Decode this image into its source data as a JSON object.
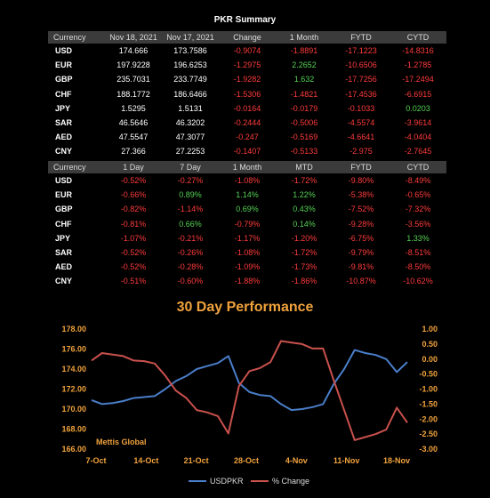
{
  "summary_title": "PKR Summary",
  "table1": {
    "headers": [
      "Currency",
      "Nov 18, 2021",
      "Nov 17, 2021",
      "Change",
      "1 Month",
      "FYTD",
      "CYTD"
    ],
    "rows": [
      [
        "USD",
        "174.666",
        "173.7586",
        "-0.9074",
        "-1.8891",
        "-17.1223",
        "-14.8316"
      ],
      [
        "EUR",
        "197.9228",
        "196.6253",
        "-1.2975",
        "2.2652",
        "-10.6506",
        "-1.2785"
      ],
      [
        "GBP",
        "235.7031",
        "233.7749",
        "-1.9282",
        "1.632",
        "-17.7256",
        "-17.2494"
      ],
      [
        "CHF",
        "188.1772",
        "186.6466",
        "-1.5306",
        "-1.4821",
        "-17.4536",
        "-6.6915"
      ],
      [
        "JPY",
        "1.5295",
        "1.5131",
        "-0.0164",
        "-0.0179",
        "-0.1033",
        "0.0203"
      ],
      [
        "SAR",
        "46.5646",
        "46.3202",
        "-0.2444",
        "-0.5006",
        "-4.5574",
        "-3.9614"
      ],
      [
        "AED",
        "47.5547",
        "47.3077",
        "-0.247",
        "-0.5169",
        "-4.6641",
        "-4.0404"
      ],
      [
        "CNY",
        "27.366",
        "27.2253",
        "-0.1407",
        "-0.5133",
        "-2.975",
        "-2.7645"
      ]
    ]
  },
  "table2": {
    "headers": [
      "Currency",
      "1 Day",
      "7 Day",
      "1 Month",
      "MTD",
      "FYTD",
      "CYTD"
    ],
    "rows": [
      [
        "USD",
        "-0.52%",
        "-0.27%",
        "-1.08%",
        "-1.72%",
        "-9.80%",
        "-8.49%"
      ],
      [
        "EUR",
        "-0.66%",
        "0.89%",
        "1.14%",
        "1.22%",
        "-5.38%",
        "-0.65%"
      ],
      [
        "GBP",
        "-0.82%",
        "-1.14%",
        "0.69%",
        "0.43%",
        "-7.52%",
        "-7.32%"
      ],
      [
        "CHF",
        "-0.81%",
        "0.66%",
        "-0.79%",
        "0.14%",
        "-9.28%",
        "-3.56%"
      ],
      [
        "JPY",
        "-1.07%",
        "-0.21%",
        "-1.17%",
        "-1.20%",
        "-6.75%",
        "1.33%"
      ],
      [
        "SAR",
        "-0.52%",
        "-0.26%",
        "-1.08%",
        "-1.72%",
        "-9.79%",
        "-8.51%"
      ],
      [
        "AED",
        "-0.52%",
        "-0.28%",
        "-1.09%",
        "-1.73%",
        "-9.81%",
        "-8.50%"
      ],
      [
        "CNY",
        "-0.51%",
        "-0.60%",
        "-1.88%",
        "-1.86%",
        "-10.87%",
        "-10.62%"
      ]
    ]
  },
  "colors": {
    "positive": "#55d155",
    "negative": "#ff3b3b",
    "header_bg": "#3b3b3b",
    "accent": "#f0a23c",
    "usdpkr_line": "#4a7ec9",
    "change_line": "#c9514d"
  },
  "chart_data": {
    "type": "line",
    "title": "30 Day Performance",
    "watermark": "Mettis Global",
    "x_tick_labels": [
      "7-Oct",
      "14-Oct",
      "21-Oct",
      "28-Oct",
      "4-Nov",
      "11-Nov",
      "18-Nov"
    ],
    "left_axis": {
      "min": 166,
      "max": 178,
      "ticks": [
        "166.00",
        "168.00",
        "170.00",
        "172.00",
        "174.00",
        "176.00",
        "178.00"
      ]
    },
    "right_axis": {
      "min": -3,
      "max": 1,
      "ticks": [
        "-3.00",
        "-2.50",
        "-2.00",
        "-1.50",
        "-1.00",
        "-0.50",
        "0.00",
        "0.50",
        "1.00"
      ]
    },
    "legend": {
      "position": "bottom"
    },
    "series": [
      {
        "name": "USDPKR",
        "axis": "left",
        "color": "#4a7ec9",
        "values": [
          170.9,
          170.5,
          170.6,
          170.8,
          171.1,
          171.2,
          171.3,
          172.0,
          172.8,
          173.3,
          174.0,
          174.3,
          174.6,
          175.3,
          172.6,
          171.7,
          171.4,
          171.3,
          170.5,
          169.9,
          170.0,
          170.2,
          170.5,
          172.5,
          174.0,
          175.9,
          175.6,
          175.4,
          175.0,
          173.7,
          174.7
        ]
      },
      {
        "name": "% Change",
        "axis": "right",
        "color": "#c9514d",
        "values": [
          -0.05,
          0.2,
          0.15,
          0.1,
          -0.05,
          -0.07,
          -0.15,
          -0.55,
          -1.05,
          -1.3,
          -1.7,
          -1.78,
          -1.9,
          -2.48,
          -0.9,
          -0.4,
          -0.3,
          -0.1,
          0.6,
          0.55,
          0.5,
          0.35,
          0.35,
          -0.7,
          -1.7,
          -2.7,
          -2.6,
          -2.5,
          -2.35,
          -1.62,
          -2.12
        ]
      }
    ]
  }
}
